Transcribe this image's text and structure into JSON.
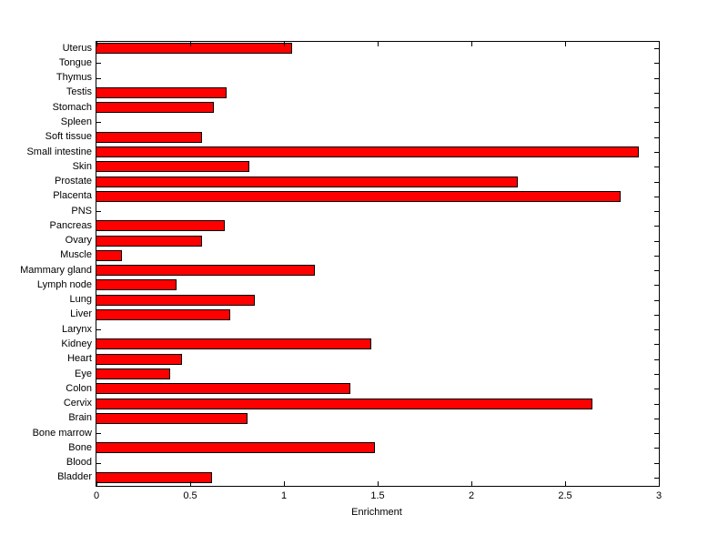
{
  "chart_data": {
    "type": "bar",
    "orientation": "horizontal",
    "title": "",
    "xlabel": "Enrichment",
    "ylabel": "",
    "xlim": [
      0,
      3
    ],
    "xticks": [
      0,
      0.5,
      1,
      1.5,
      2,
      2.5,
      3
    ],
    "xtick_labels": [
      "0",
      "0.5",
      "1",
      "1.5",
      "2",
      "2.5",
      "3"
    ],
    "grid": false,
    "legend": null,
    "bar_color": "#ff0000",
    "bar_edge_color": "#000000",
    "axis_color": "#000000",
    "background_color": "#ffffff",
    "categories": [
      "Uterus",
      "Tongue",
      "Thymus",
      "Testis",
      "Stomach",
      "Spleen",
      "Soft tissue",
      "Small intestine",
      "Skin",
      "Prostate",
      "Placenta",
      "PNS",
      "Pancreas",
      "Ovary",
      "Muscle",
      "Mammary gland",
      "Lymph node",
      "Lung",
      "Liver",
      "Larynx",
      "Kidney",
      "Heart",
      "Eye",
      "Colon",
      "Cervix",
      "Brain",
      "Bone marrow",
      "Bone",
      "Blood",
      "Bladder"
    ],
    "values": [
      1.05,
      0,
      0,
      0.7,
      0.63,
      0,
      0.57,
      2.9,
      0.82,
      2.25,
      2.8,
      0,
      0.69,
      0.57,
      0.14,
      1.17,
      0.43,
      0.85,
      0.72,
      0,
      1.47,
      0.46,
      0.4,
      1.36,
      2.65,
      0.81,
      0,
      1.49,
      0,
      0.62
    ]
  }
}
